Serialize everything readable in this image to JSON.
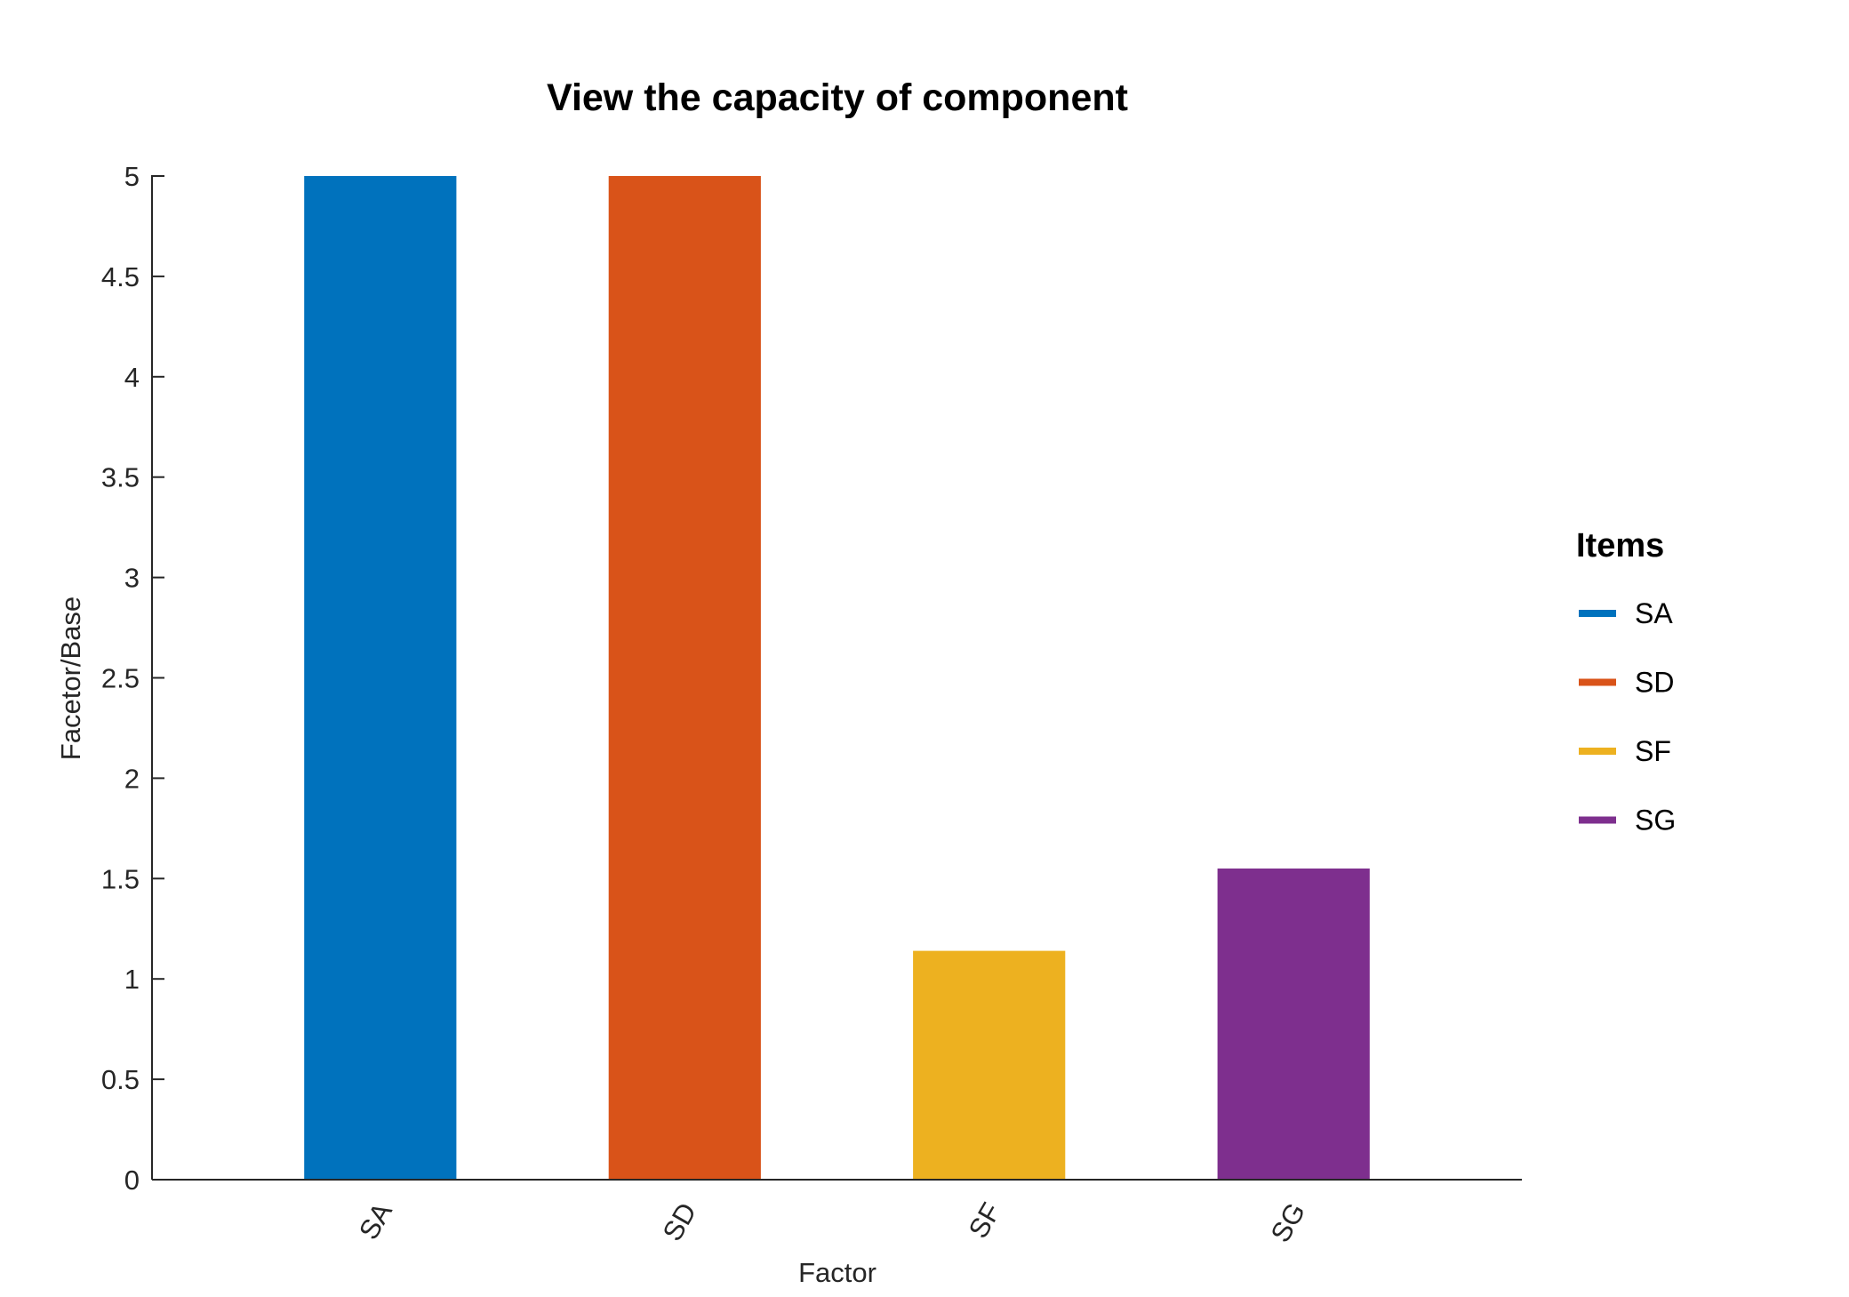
{
  "chart_data": {
    "type": "bar",
    "title": "View the capacity of component",
    "xlabel": "Factor",
    "ylabel": "Facetor/Base",
    "categories": [
      "SA",
      "SD",
      "SF",
      "SG"
    ],
    "values": [
      5.0,
      5.0,
      1.14,
      1.55
    ],
    "colors": [
      "#0072BD",
      "#D95319",
      "#EDB120",
      "#7E2F8E"
    ],
    "ylim": [
      0,
      5
    ],
    "yticks": [
      0,
      0.5,
      1,
      1.5,
      2,
      2.5,
      3,
      3.5,
      4,
      4.5,
      5
    ],
    "ytick_labels": [
      "0",
      "0.5",
      "1",
      "1.5",
      "2",
      "2.5",
      "3",
      "3.5",
      "4",
      "4.5",
      "5"
    ],
    "grid": false,
    "legend": {
      "title": "Items",
      "placement": "right",
      "entries": [
        "SA",
        "SD",
        "SF",
        "SG"
      ]
    }
  }
}
